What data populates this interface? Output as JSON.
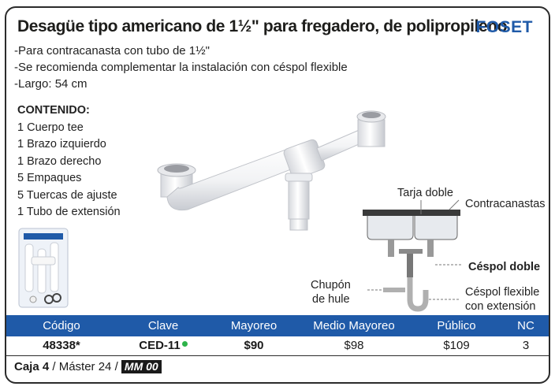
{
  "header": {
    "title": "Desagüe tipo americano de 1½\" para fregadero, de polipropileno",
    "brand": "FOSET"
  },
  "features": [
    "-Para contracanasta con tubo de 1½\"",
    "-Se recomienda complementar la instalación con céspol flexible",
    "-Largo: 54 cm"
  ],
  "contents": {
    "heading": "CONTENIDO:",
    "items": [
      "1 Cuerpo tee",
      "1 Brazo izquierdo",
      "1 Brazo derecho",
      "5 Empaques",
      "5 Tuercas de ajuste",
      "1 Tubo de extensión"
    ]
  },
  "diagram": {
    "sink_label": "Tarja doble",
    "strainer_label": "Contracanastas",
    "trap_label": "Céspol doble",
    "nipple_label_1": "Chupón",
    "nipple_label_2": "de hule",
    "flex_label_1": "Céspol flexible",
    "flex_label_2": "con extensión"
  },
  "table": {
    "headers": [
      "Código",
      "Clave",
      "Mayoreo",
      "Medio Mayoreo",
      "Público",
      "NC"
    ],
    "row": {
      "codigo": "48338*",
      "clave": "CED-11",
      "mayoreo": "$90",
      "medio_mayoreo": "$98",
      "publico": "$109",
      "nc": "3"
    },
    "status_color": "#2db34a"
  },
  "footer": {
    "caja_label": "Caja 4",
    "master_label": "/ Máster 24 /",
    "mm_badge": "MM 00"
  },
  "colors": {
    "accent": "#1f5aa8",
    "text": "#1d1d1b"
  }
}
